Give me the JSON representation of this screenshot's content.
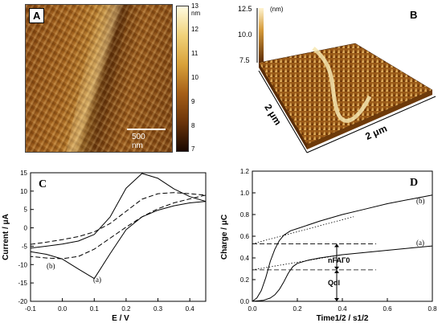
{
  "panel_a": {
    "label": "A",
    "scale_bar": "500 nm",
    "colorbar_ticks": [
      "13 nm",
      "12",
      "11",
      "10",
      "9",
      "8",
      "7"
    ]
  },
  "panel_b": {
    "label": "B",
    "z_ticks": [
      "12.5",
      "10.0",
      "7.5"
    ],
    "z_unit": "(nm)",
    "x_axis_label": "2 μm",
    "y_axis_label": "2 μm"
  },
  "chart_data": [
    {
      "type": "line",
      "panel": "C",
      "title": "",
      "xlabel": "E / V",
      "ylabel": "Current / μA",
      "xlim": [
        -0.1,
        0.45
      ],
      "ylim": [
        -20,
        15
      ],
      "xticks": [
        "-0.1",
        "0.0",
        "0.1",
        "0.2",
        "0.3",
        "0.4"
      ],
      "yticks": [
        "15",
        "10",
        "5",
        "0",
        "-5",
        "-10",
        "-15",
        "-20"
      ],
      "annotations": [
        "(a)",
        "(b)"
      ],
      "series": [
        {
          "name": "(a)",
          "style": "solid",
          "x": [
            -0.1,
            -0.05,
            0.0,
            0.05,
            0.1,
            0.15,
            0.2,
            0.25,
            0.3,
            0.35,
            0.4,
            0.45,
            0.4,
            0.35,
            0.3,
            0.25,
            0.2,
            0.15,
            0.1,
            0.05,
            0.0,
            -0.05,
            -0.1
          ],
          "y": [
            -5.5,
            -5.0,
            -4.4,
            -3.6,
            -1.8,
            3.0,
            10.8,
            14.8,
            13.5,
            10.6,
            8.5,
            7.2,
            6.8,
            6.0,
            4.8,
            3.0,
            -0.5,
            -7.0,
            -13.8,
            -11.2,
            -8.5,
            -7.2,
            -6.5
          ]
        },
        {
          "name": "(b)",
          "style": "dashed",
          "x": [
            -0.1,
            -0.05,
            0.0,
            0.05,
            0.1,
            0.15,
            0.2,
            0.25,
            0.3,
            0.35,
            0.4,
            0.45,
            0.4,
            0.35,
            0.3,
            0.25,
            0.2,
            0.15,
            0.1,
            0.05,
            0.0,
            -0.05,
            -0.1
          ],
          "y": [
            -4.5,
            -3.9,
            -3.2,
            -2.4,
            -1.1,
            1.2,
            4.5,
            7.8,
            9.3,
            9.6,
            9.3,
            8.9,
            7.9,
            6.8,
            5.2,
            3.0,
            0.2,
            -2.8,
            -5.8,
            -7.8,
            -8.4,
            -8.2,
            -7.8
          ]
        }
      ]
    },
    {
      "type": "line",
      "panel": "D",
      "title": "",
      "xlabel": "Time1/2 / s1/2",
      "ylabel": "Charge / μC",
      "xlim": [
        0.0,
        0.8
      ],
      "ylim": [
        0.0,
        1.2
      ],
      "xticks": [
        "0.0",
        "0.2",
        "0.4",
        "0.6",
        "0.8"
      ],
      "yticks": [
        "0.0",
        "0.2",
        "0.4",
        "0.6",
        "0.8",
        "1.0",
        "1.2"
      ],
      "annotations": [
        "(a)",
        "(b)",
        "nFAΓ0",
        "Qdl"
      ],
      "series": [
        {
          "name": "(b)",
          "style": "solid",
          "x": [
            0.0,
            0.02,
            0.04,
            0.06,
            0.08,
            0.1,
            0.12,
            0.14,
            0.17,
            0.2,
            0.3,
            0.4,
            0.5,
            0.6,
            0.7,
            0.8
          ],
          "y": [
            0.0,
            0.03,
            0.1,
            0.22,
            0.37,
            0.48,
            0.56,
            0.61,
            0.65,
            0.67,
            0.74,
            0.8,
            0.85,
            0.9,
            0.94,
            0.98
          ]
        },
        {
          "name": "(a)",
          "style": "solid",
          "x": [
            0.0,
            0.05,
            0.08,
            0.1,
            0.12,
            0.14,
            0.16,
            0.18,
            0.2,
            0.25,
            0.3,
            0.4,
            0.5,
            0.6,
            0.7,
            0.8
          ],
          "y": [
            0.0,
            0.01,
            0.03,
            0.06,
            0.11,
            0.18,
            0.26,
            0.32,
            0.35,
            0.38,
            0.4,
            0.43,
            0.45,
            0.47,
            0.49,
            0.51
          ]
        }
      ],
      "extrapolations": [
        {
          "style": "dotted",
          "x": [
            0.0,
            0.45
          ],
          "y": [
            0.53,
            0.78
          ]
        },
        {
          "style": "dotted",
          "x": [
            0.0,
            0.4
          ],
          "y": [
            0.29,
            0.43
          ]
        }
      ],
      "reference_levels": [
        {
          "style": "dashed",
          "y": 0.53,
          "x": [
            0.0,
            0.55
          ]
        },
        {
          "style": "dashed",
          "y": 0.29,
          "x": [
            0.0,
            0.55
          ]
        }
      ]
    }
  ]
}
